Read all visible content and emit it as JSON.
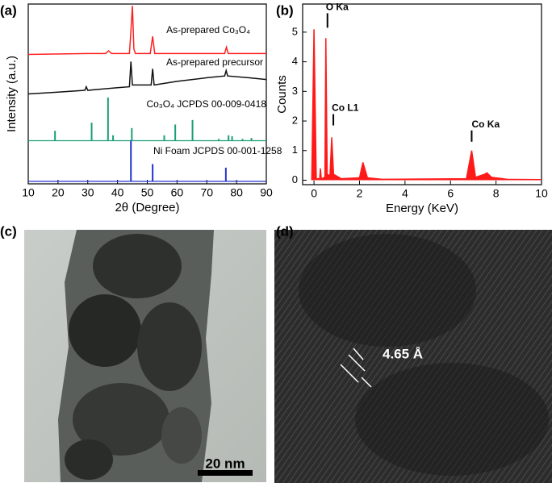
{
  "chart_data": [
    {
      "type": "xrd",
      "panel_label": "(a)",
      "x_label": "2θ (Degree)",
      "y_label": "Intensity (a.u.)",
      "xlim": [
        10,
        90
      ],
      "ylim": [
        0,
        100
      ],
      "xticks": [
        10,
        20,
        30,
        40,
        50,
        60,
        70,
        80,
        90
      ],
      "series": [
        {
          "name": "As-prepared Co₃O₄",
          "color": "#ff2020",
          "style": "line",
          "x": [
            10,
            30,
            36,
            37,
            38,
            44,
            44.5,
            45,
            45.5,
            46,
            51,
            51.8,
            52.5,
            60,
            76,
            76.6,
            77.2,
            90
          ],
          "values": [
            72,
            72.5,
            72.5,
            74,
            72.5,
            72.5,
            85,
            99,
            75,
            72.5,
            72.5,
            82,
            72.5,
            72.5,
            72.5,
            76,
            72.5,
            72.5
          ]
        },
        {
          "name": "As-prepared precursor",
          "color": "#111111",
          "style": "line",
          "x": [
            10,
            20,
            29,
            29.5,
            30,
            40,
            44,
            44.5,
            45,
            48,
            51.3,
            51.8,
            52.3,
            60,
            70,
            76,
            76.5,
            77,
            84,
            90
          ],
          "values": [
            50,
            51,
            52,
            54,
            52,
            53.5,
            54,
            68,
            55,
            55,
            55,
            64,
            55,
            57,
            59,
            60,
            63,
            60,
            59,
            58
          ]
        },
        {
          "name": "Co₃O₄ JCPDS 00-009-0418",
          "color": "#1a9e77",
          "style": "stick",
          "baseline": 24,
          "x": [
            19,
            31.3,
            36.8,
            38.5,
            44.8,
            55.7,
            59.4,
            65.2,
            74,
            77.3,
            78.5,
            82,
            85
          ],
          "values": [
            29.5,
            34,
            48,
            27,
            31,
            27,
            33,
            35.5,
            25,
            27,
            26.5,
            25,
            25.5
          ]
        },
        {
          "name": "Ni Foam JCPDS 00-001-1258",
          "color": "#2233cc",
          "style": "stick",
          "baseline": 1.4,
          "x": [
            44.5,
            51.8,
            76.4
          ],
          "values": [
            24,
            11,
            9
          ]
        }
      ]
    },
    {
      "type": "spectrum",
      "panel_label": "(b)",
      "x_label": "Energy (KeV)",
      "y_label": "Counts",
      "xlim": [
        -0.5,
        10
      ],
      "ylim": [
        -0.15,
        5.95
      ],
      "xticks": [
        0,
        2,
        4,
        6,
        8,
        10
      ],
      "yticks": [
        0,
        1,
        2,
        3,
        4,
        5
      ],
      "color": "#ff1a1a",
      "x": [
        -0.1,
        0,
        0.1,
        0.25,
        0.28,
        0.32,
        0.48,
        0.52,
        0.58,
        0.7,
        0.78,
        0.86,
        1.2,
        2.0,
        2.15,
        2.35,
        3,
        6.7,
        6.93,
        7.1,
        7.5,
        7.6,
        7.8,
        8.5,
        10
      ],
      "values": [
        0,
        5.1,
        0.05,
        0.05,
        0.4,
        0.05,
        0.1,
        4.8,
        0.2,
        0.15,
        1.45,
        0.2,
        0.05,
        0.08,
        0.6,
        0.08,
        0.03,
        0.05,
        1.0,
        0.1,
        0.2,
        0.25,
        0.1,
        0.03,
        0.02
      ],
      "annotations": [
        "O Ka",
        "Co L1",
        "Co Ka"
      ]
    }
  ],
  "images": [
    {
      "panel_label": "(c)",
      "scale_bar": "20 nm"
    },
    {
      "panel_label": "(d)",
      "annotation": "4.65 Å"
    }
  ]
}
